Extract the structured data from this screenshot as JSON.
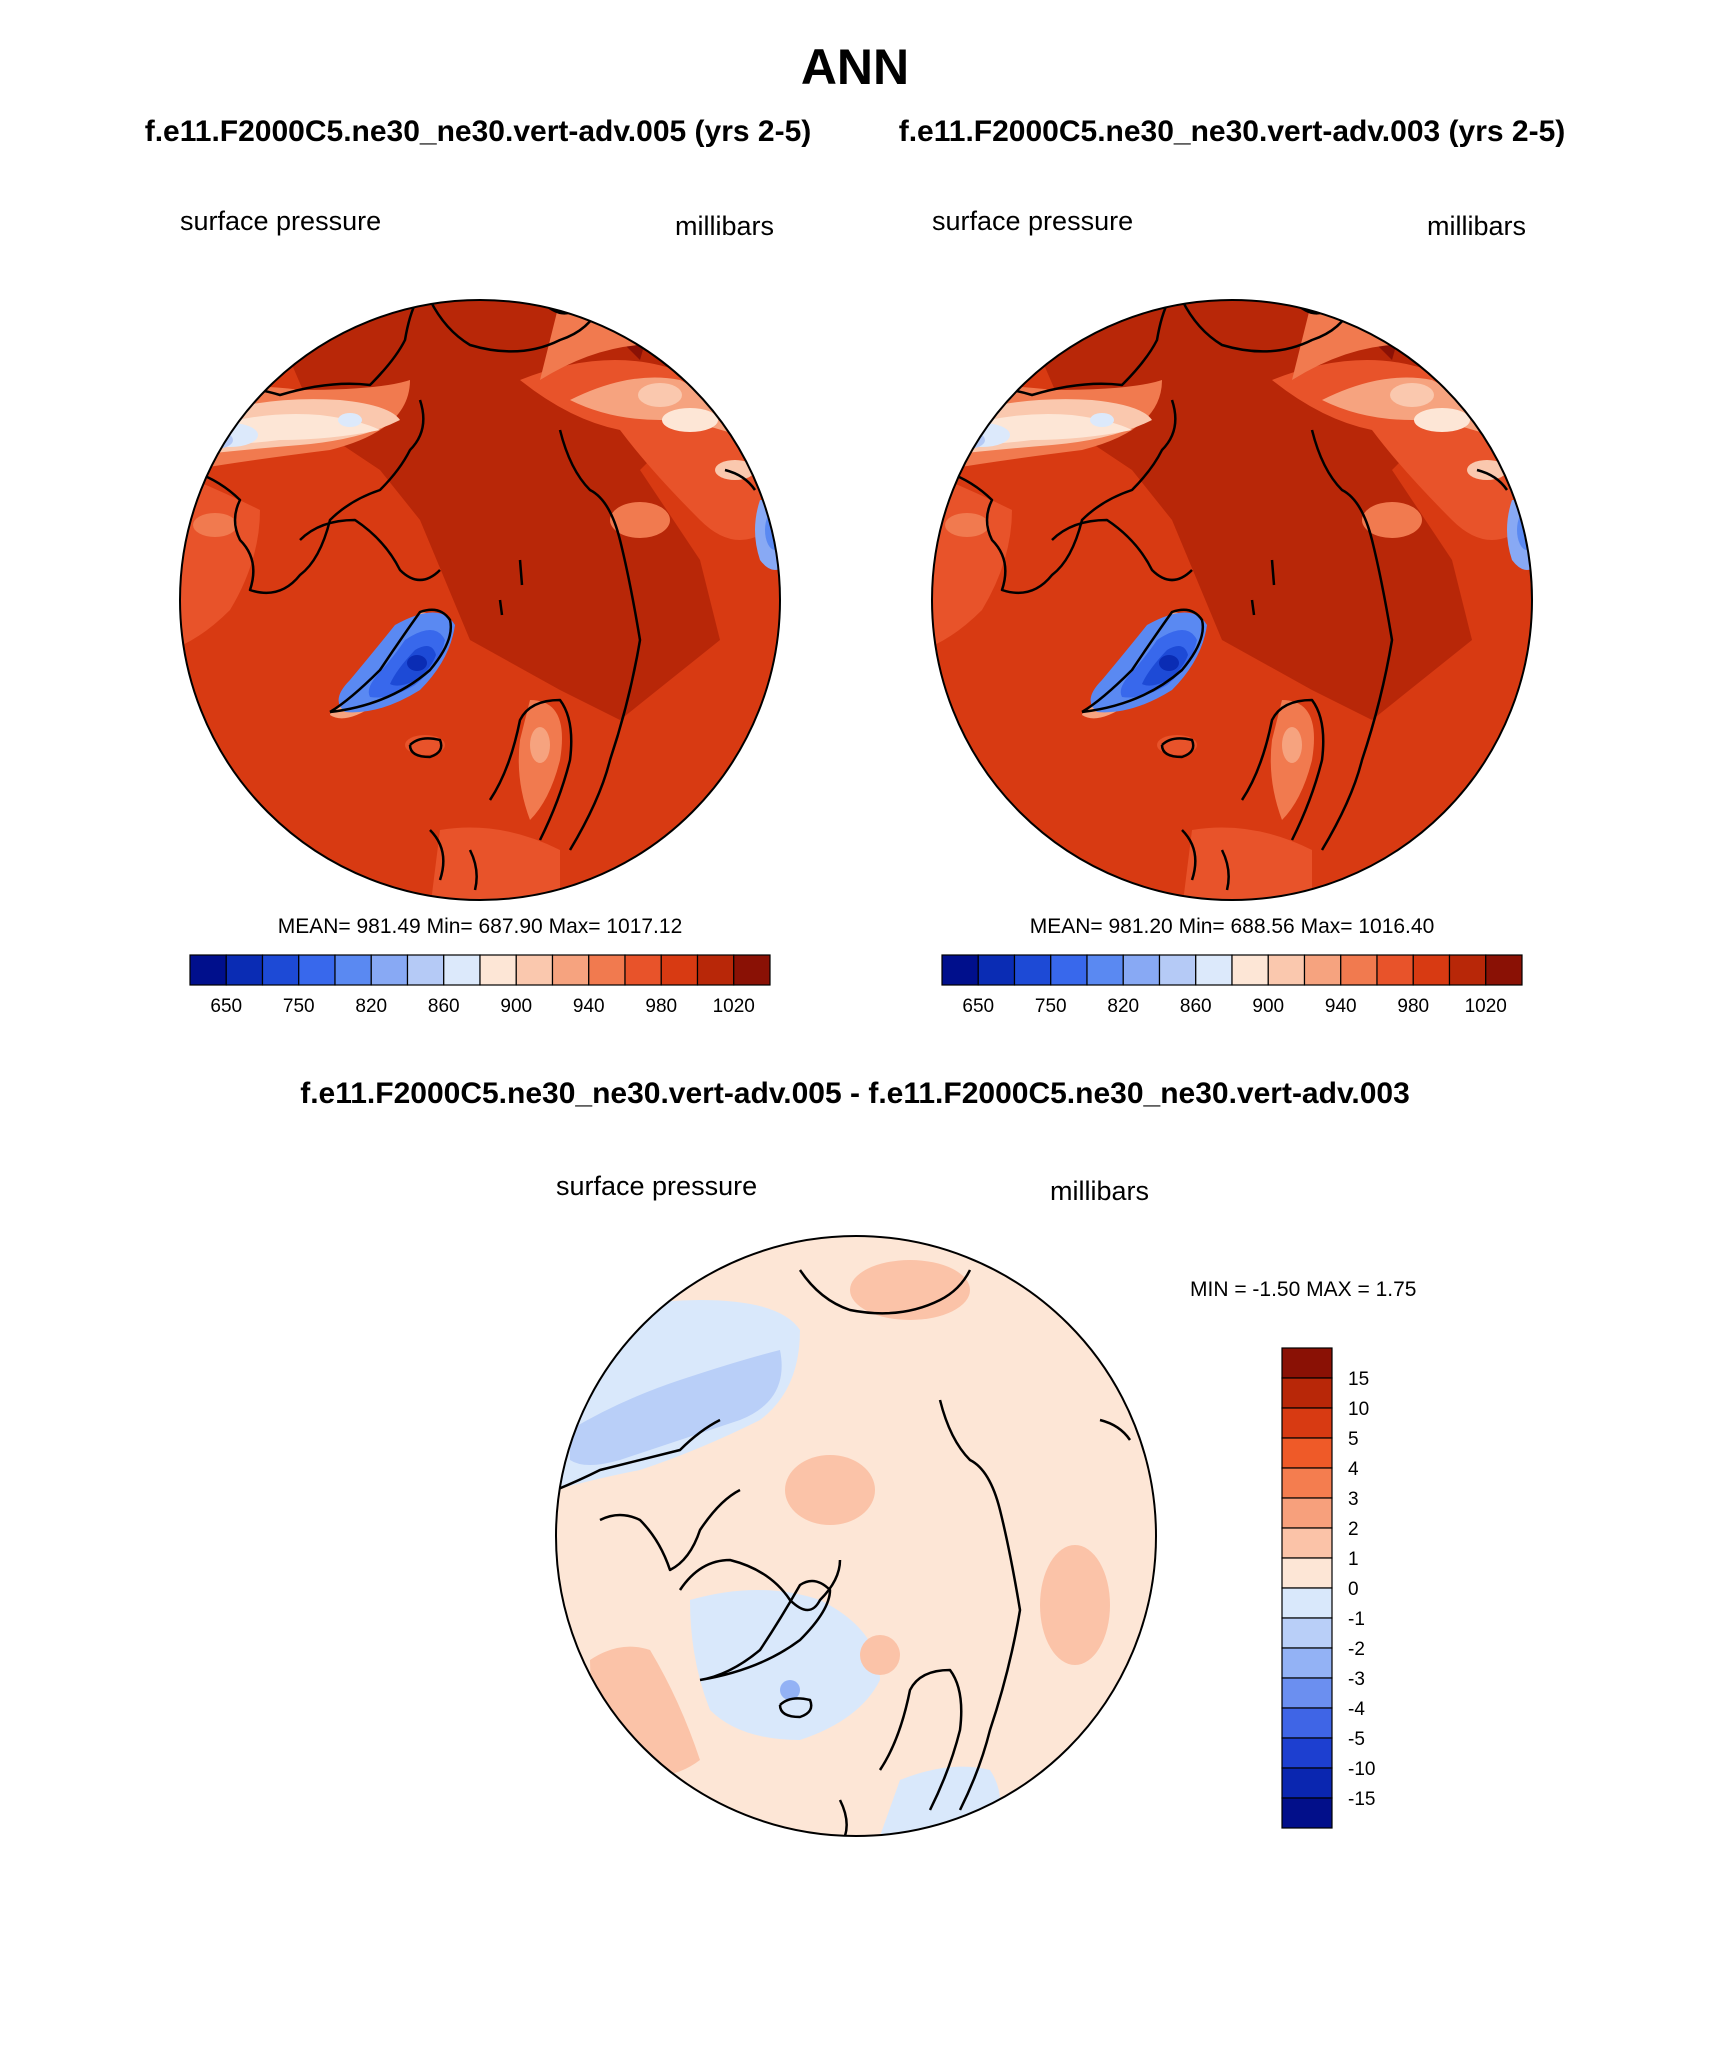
{
  "page": {
    "title": "ANN",
    "case_titles": [
      "f.e11.F2000C5.ne30_ne30.vert-adv.005 (yrs 2-5)",
      "f.e11.F2000C5.ne30_ne30.vert-adv.003 (yrs 2-5)"
    ],
    "diff_title": "f.e11.F2000C5.ne30_ne30.vert-adv.005 - f.e11.F2000C5.ne30_ne30.vert-adv.003"
  },
  "panels": [
    {
      "variable": "surface pressure",
      "units": "millibars",
      "stats": "MEAN= 981.49  Min= 687.90  Max= 1017.12",
      "colorbar_labels": [
        "650",
        "750",
        "820",
        "860",
        "900",
        "940",
        "980",
        "1020"
      ]
    },
    {
      "variable": "surface pressure",
      "units": "millibars",
      "stats": "MEAN= 981.20  Min= 688.56  Max= 1016.40",
      "colorbar_labels": [
        "650",
        "750",
        "820",
        "860",
        "900",
        "940",
        "980",
        "1020"
      ]
    }
  ],
  "diff_panel": {
    "variable": "surface pressure",
    "units": "millibars",
    "stats": "MIN =  -1.50 MAX =   1.75",
    "colorbar_labels": [
      "15",
      "10",
      "5",
      "4",
      "3",
      "2",
      "1",
      "0",
      "-1",
      "-2",
      "-3",
      "-4",
      "-5",
      "-10",
      "-15"
    ]
  },
  "colors": {
    "abs_scale": [
      "#000f8c",
      "#0a2cb4",
      "#1d4ad6",
      "#3868ec",
      "#5a89f2",
      "#88a9f4",
      "#b5caf6",
      "#dce9fb",
      "#fde6d6",
      "#fac8ae",
      "#f6a37f",
      "#f17a4f",
      "#e8532a",
      "#d83a12",
      "#b82708",
      "#8a1105"
    ],
    "diff_scale": [
      "#8a1105",
      "#b82708",
      "#d83a12",
      "#ef5a28",
      "#f47d4f",
      "#f7a07c",
      "#fbc3a8",
      "#fde6d6",
      "#d9e8fb",
      "#b9cff8",
      "#93b2f5",
      "#6b8ff0",
      "#3f65e6",
      "#1d3fd0",
      "#0a26b0",
      "#020f8a"
    ],
    "coastline": "#000000"
  }
}
